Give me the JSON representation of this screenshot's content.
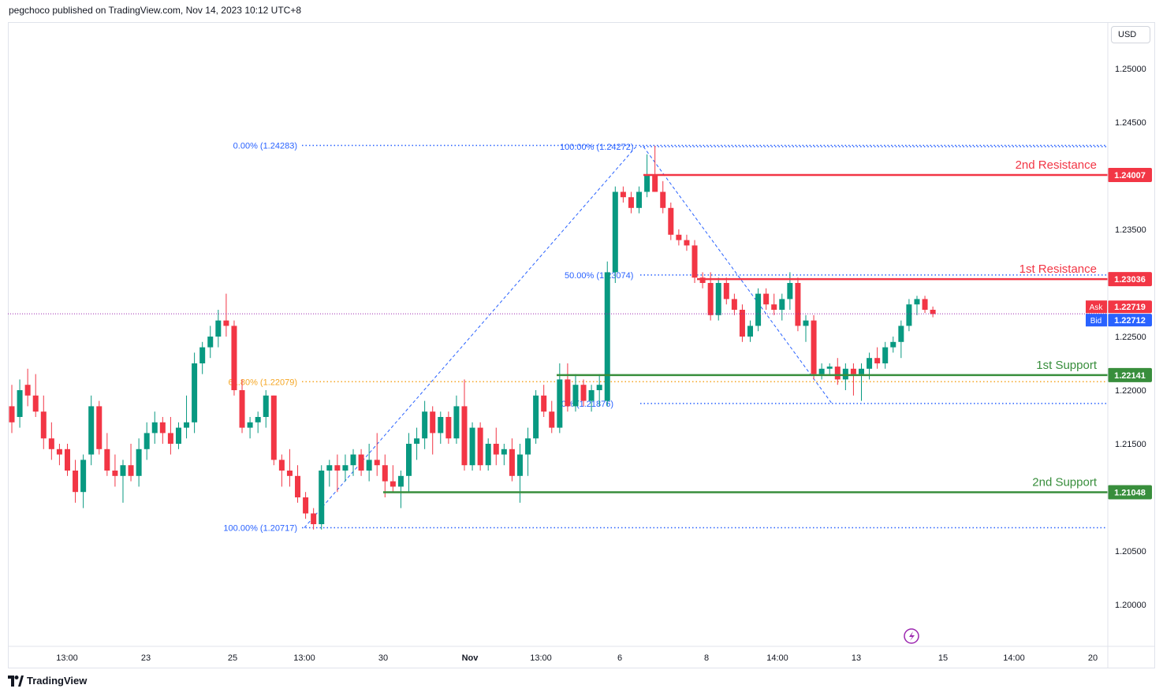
{
  "header": {
    "publisher_line": "pegchoco published on TradingView.com, Nov 14, 2023 10:12 UTC+8"
  },
  "price_axis": {
    "currency": "USD"
  },
  "footer": {
    "brand": "TradingView"
  },
  "colors": {
    "up": "#089981",
    "down": "#f23645",
    "resistance": "#f23645",
    "support": "#388e3c",
    "fib_blue": "#2962ff",
    "fib_orange": "#f5a623",
    "bid": "#2962ff",
    "ask": "#f23645",
    "current_price_line": "#9c27b0"
  },
  "chart_data": {
    "type": "candlestick",
    "symbol_quote": "USD",
    "y_range": [
      1.197,
      1.256
    ],
    "y_ticks": [
      "1.25000",
      "1.24500",
      "1.23500",
      "1.22500",
      "1.22000",
      "1.21500",
      "1.20500",
      "1.20000"
    ],
    "x_ticks": [
      "13:00",
      "23",
      "25",
      "13:00",
      "30",
      "Nov",
      "13:00",
      "6",
      "8",
      "14:00",
      "13",
      "15",
      "14:00",
      "20"
    ],
    "levels": [
      {
        "name": "2nd Resistance",
        "price": "1.24007",
        "kind": "resistance",
        "value": 1.24007
      },
      {
        "name": "1st Resistance",
        "price": "1.23036",
        "kind": "resistance",
        "value": 1.23036
      },
      {
        "name": "1st Support",
        "price": "1.22141",
        "kind": "support",
        "value": 1.22141
      },
      {
        "name": "2nd Support",
        "price": "1.21048",
        "kind": "support",
        "value": 1.21048
      }
    ],
    "fibonacci_left": [
      {
        "label": "0.00% (1.24283)",
        "value": 1.24283,
        "color": "fib_blue"
      },
      {
        "label": "61.80% (1.22079)",
        "value": 1.22079,
        "color": "fib_orange"
      },
      {
        "label": "100.00% (1.20717)",
        "value": 1.20717,
        "color": "fib_blue"
      }
    ],
    "fibonacci_right": [
      {
        "label": "100.00% (1.24272)",
        "value": 1.24272
      },
      {
        "label": "50.00% (1.23074)",
        "value": 1.23074
      },
      {
        "label": "0% (1.21876)",
        "value": 1.21876
      }
    ],
    "ask": {
      "label": "Ask",
      "price": "1.22719",
      "value": 1.22719
    },
    "bid": {
      "label": "Bid",
      "price": "1.22712",
      "value": 1.22712
    },
    "candles": [
      [
        1.2185,
        1.2205,
        1.216,
        1.217
      ],
      [
        1.2175,
        1.221,
        1.2165,
        1.22
      ],
      [
        1.2205,
        1.222,
        1.2185,
        1.2195
      ],
      [
        1.2195,
        1.2215,
        1.2175,
        1.218
      ],
      [
        1.218,
        1.2195,
        1.2145,
        1.2155
      ],
      [
        1.2155,
        1.217,
        1.2135,
        1.2145
      ],
      [
        1.2145,
        1.215,
        1.213,
        1.214
      ],
      [
        1.2145,
        1.215,
        1.212,
        1.2125
      ],
      [
        1.2125,
        1.2135,
        1.2095,
        1.2105
      ],
      [
        1.2105,
        1.214,
        1.209,
        1.2135
      ],
      [
        1.214,
        1.2195,
        1.213,
        1.2185
      ],
      [
        1.2185,
        1.219,
        1.214,
        1.2145
      ],
      [
        1.2145,
        1.216,
        1.212,
        1.2125
      ],
      [
        1.2125,
        1.214,
        1.211,
        1.212
      ],
      [
        1.212,
        1.2135,
        1.2095,
        1.213
      ],
      [
        1.213,
        1.215,
        1.2115,
        1.212
      ],
      [
        1.212,
        1.2155,
        1.211,
        1.2145
      ],
      [
        1.2145,
        1.217,
        1.2135,
        1.216
      ],
      [
        1.216,
        1.218,
        1.215,
        1.217
      ],
      [
        1.217,
        1.2175,
        1.215,
        1.216
      ],
      [
        1.216,
        1.2175,
        1.214,
        1.215
      ],
      [
        1.215,
        1.217,
        1.2145,
        1.2165
      ],
      [
        1.2165,
        1.2195,
        1.2155,
        1.217
      ],
      [
        1.217,
        1.2235,
        1.216,
        1.2225
      ],
      [
        1.2225,
        1.2245,
        1.2215,
        1.224
      ],
      [
        1.224,
        1.226,
        1.223,
        1.225
      ],
      [
        1.225,
        1.2275,
        1.224,
        1.2265
      ],
      [
        1.2265,
        1.229,
        1.225,
        1.226
      ],
      [
        1.226,
        1.2265,
        1.2195,
        1.22
      ],
      [
        1.22,
        1.221,
        1.216,
        1.2165
      ],
      [
        1.2165,
        1.2175,
        1.2155,
        1.217
      ],
      [
        1.217,
        1.218,
        1.216,
        1.2175
      ],
      [
        1.2175,
        1.22,
        1.2165,
        1.2195
      ],
      [
        1.2195,
        1.2195,
        1.213,
        1.2135
      ],
      [
        1.2135,
        1.214,
        1.211,
        1.2125
      ],
      [
        1.2125,
        1.2145,
        1.211,
        1.212
      ],
      [
        1.212,
        1.213,
        1.2095,
        1.21
      ],
      [
        1.21,
        1.2105,
        1.208,
        1.2085
      ],
      [
        1.2085,
        1.209,
        1.207,
        1.2075
      ],
      [
        1.2075,
        1.213,
        1.207,
        1.2125
      ],
      [
        1.2125,
        1.2135,
        1.211,
        1.213
      ],
      [
        1.213,
        1.214,
        1.2105,
        1.2125
      ],
      [
        1.2125,
        1.214,
        1.2115,
        1.213
      ],
      [
        1.213,
        1.2145,
        1.212,
        1.214
      ],
      [
        1.214,
        1.2145,
        1.212,
        1.2125
      ],
      [
        1.2125,
        1.215,
        1.2115,
        1.2135
      ],
      [
        1.2135,
        1.216,
        1.212,
        1.213
      ],
      [
        1.213,
        1.214,
        1.21,
        1.2115
      ],
      [
        1.2115,
        1.213,
        1.2105,
        1.211
      ],
      [
        1.211,
        1.2125,
        1.209,
        1.212
      ],
      [
        1.212,
        1.216,
        1.2105,
        1.215
      ],
      [
        1.215,
        1.2165,
        1.2135,
        1.2155
      ],
      [
        1.2155,
        1.219,
        1.2145,
        1.218
      ],
      [
        1.218,
        1.2185,
        1.214,
        1.216
      ],
      [
        1.216,
        1.218,
        1.215,
        1.2175
      ],
      [
        1.2175,
        1.218,
        1.215,
        1.2155
      ],
      [
        1.2155,
        1.2195,
        1.215,
        1.2185
      ],
      [
        1.2185,
        1.221,
        1.2125,
        1.213
      ],
      [
        1.213,
        1.217,
        1.2125,
        1.2165
      ],
      [
        1.2165,
        1.217,
        1.2125,
        1.213
      ],
      [
        1.213,
        1.2155,
        1.2125,
        1.215
      ],
      [
        1.215,
        1.2165,
        1.213,
        1.214
      ],
      [
        1.214,
        1.215,
        1.213,
        1.2145
      ],
      [
        1.2145,
        1.2155,
        1.2115,
        1.212
      ],
      [
        1.212,
        1.215,
        1.2095,
        1.214
      ],
      [
        1.214,
        1.2165,
        1.212,
        1.2155
      ],
      [
        1.2155,
        1.22,
        1.215,
        1.2195
      ],
      [
        1.2195,
        1.2205,
        1.2175,
        1.218
      ],
      [
        1.218,
        1.219,
        1.216,
        1.2165
      ],
      [
        1.2165,
        1.2225,
        1.216,
        1.221
      ],
      [
        1.221,
        1.2225,
        1.218,
        1.2185
      ],
      [
        1.2185,
        1.2215,
        1.218,
        1.2205
      ],
      [
        1.2205,
        1.221,
        1.2185,
        1.219
      ],
      [
        1.219,
        1.2205,
        1.218,
        1.22
      ],
      [
        1.22,
        1.2215,
        1.2185,
        1.2205
      ],
      [
        1.219,
        1.232,
        1.2185,
        1.231
      ],
      [
        1.231,
        1.239,
        1.23,
        1.2385
      ],
      [
        1.2385,
        1.239,
        1.2375,
        1.238
      ],
      [
        1.238,
        1.2385,
        1.2365,
        1.237
      ],
      [
        1.237,
        1.239,
        1.2365,
        1.2385
      ],
      [
        1.2385,
        1.242,
        1.238,
        1.24
      ],
      [
        1.24,
        1.2428,
        1.2385,
        1.2385
      ],
      [
        1.2385,
        1.2395,
        1.2365,
        1.237
      ],
      [
        1.237,
        1.2375,
        1.234,
        1.2345
      ],
      [
        1.2345,
        1.235,
        1.2335,
        1.234
      ],
      [
        1.234,
        1.2345,
        1.233,
        1.2335
      ],
      [
        1.2335,
        1.234,
        1.23,
        1.2305
      ],
      [
        1.2305,
        1.231,
        1.2295,
        1.23
      ],
      [
        1.23,
        1.231,
        1.2265,
        1.227
      ],
      [
        1.227,
        1.2305,
        1.2265,
        1.23
      ],
      [
        1.23,
        1.2305,
        1.228,
        1.2285
      ],
      [
        1.2285,
        1.229,
        1.227,
        1.2275
      ],
      [
        1.2275,
        1.228,
        1.2245,
        1.225
      ],
      [
        1.225,
        1.2265,
        1.2245,
        1.226
      ],
      [
        1.226,
        1.2295,
        1.2255,
        1.229
      ],
      [
        1.229,
        1.2295,
        1.2275,
        1.228
      ],
      [
        1.228,
        1.229,
        1.227,
        1.2275
      ],
      [
        1.2275,
        1.229,
        1.2265,
        1.2285
      ],
      [
        1.2285,
        1.231,
        1.2275,
        1.23
      ],
      [
        1.23,
        1.2305,
        1.2255,
        1.226
      ],
      [
        1.226,
        1.227,
        1.2245,
        1.2265
      ],
      [
        1.2265,
        1.227,
        1.221,
        1.2215
      ],
      [
        1.2215,
        1.2225,
        1.221,
        1.222
      ],
      [
        1.222,
        1.2225,
        1.2215,
        1.2222
      ],
      [
        1.2222,
        1.223,
        1.2205,
        1.221
      ],
      [
        1.221,
        1.2225,
        1.22,
        1.222
      ],
      [
        1.222,
        1.2225,
        1.2195,
        1.2215
      ],
      [
        1.2215,
        1.2225,
        1.219,
        1.222
      ],
      [
        1.222,
        1.2235,
        1.221,
        1.223
      ],
      [
        1.223,
        1.224,
        1.222,
        1.2225
      ],
      [
        1.2225,
        1.2245,
        1.222,
        1.224
      ],
      [
        1.224,
        1.225,
        1.2235,
        1.2245
      ],
      [
        1.2245,
        1.2265,
        1.223,
        1.226
      ],
      [
        1.226,
        1.2285,
        1.2255,
        1.228
      ],
      [
        1.228,
        1.2288,
        1.227,
        1.2285
      ],
      [
        1.2285,
        1.2288,
        1.2272,
        1.2275
      ],
      [
        1.2275,
        1.2278,
        1.2268,
        1.2271
      ]
    ]
  }
}
